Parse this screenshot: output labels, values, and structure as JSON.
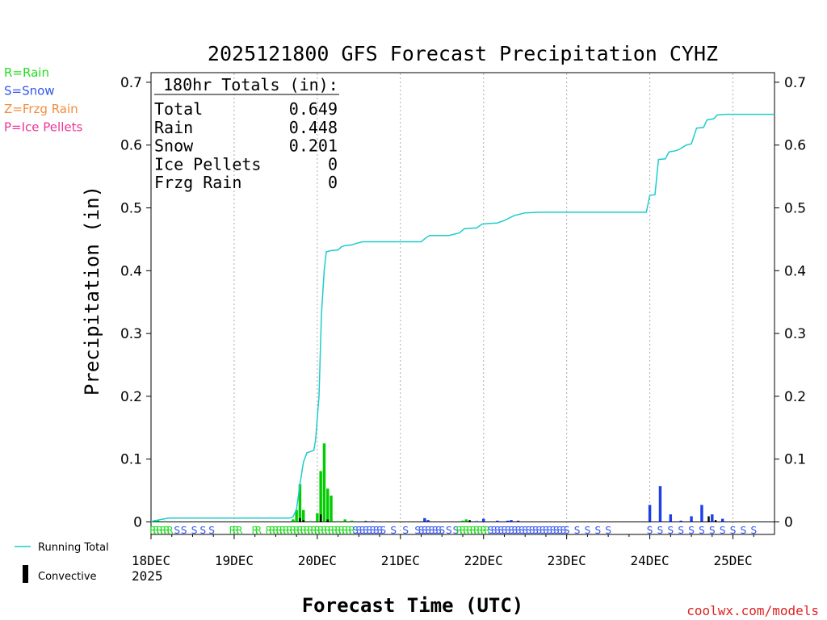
{
  "chart_data": {
    "type": "bar",
    "title": "2025121800 GFS Forecast Precipitation CYHZ",
    "xlabel": "Forecast Time (UTC)",
    "ylabel": "Precipitation (in)",
    "ylim": [
      0,
      0.72
    ],
    "xlim_hours": [
      0,
      180
    ],
    "y_ticks": [
      "0",
      "0.1",
      "0.2",
      "0.3",
      "0.4",
      "0.5",
      "0.6",
      "0.7"
    ],
    "x_ticks": [
      {
        "label": "18DEC",
        "hour": 0
      },
      {
        "label": "19DEC",
        "hour": 24
      },
      {
        "label": "20DEC",
        "hour": 48
      },
      {
        "label": "21DEC",
        "hour": 72
      },
      {
        "label": "22DEC",
        "hour": 96
      },
      {
        "label": "23DEC",
        "hour": 120
      },
      {
        "label": "24DEC",
        "hour": 144
      },
      {
        "label": "25DEC",
        "hour": 168
      }
    ],
    "year_label": "2025",
    "totals_box": {
      "header": "180hr Totals (in):",
      "rows": [
        {
          "label": "Total",
          "value": "0.649"
        },
        {
          "label": "Rain",
          "value": "0.448"
        },
        {
          "label": "Snow",
          "value": "0.201"
        },
        {
          "label": "Ice Pellets",
          "value": "0"
        },
        {
          "label": "Frzg Rain",
          "value": "0"
        }
      ]
    },
    "legend_types": [
      {
        "label": "R=Rain",
        "color": "#22dd22"
      },
      {
        "label": "S=Snow",
        "color": "#3355ee"
      },
      {
        "label": "Z=Frzg Rain",
        "color": "#f08c3c"
      },
      {
        "label": "P=Ice Pellets",
        "color": "#ee3399"
      }
    ],
    "legend_bottom": {
      "running_total": "Running Total",
      "convective": "Convective"
    },
    "colors": {
      "rain": "#00cc00",
      "snow": "#1e3ee6",
      "running_total": "#1ecccc",
      "convective": "#000000",
      "snow_letter": "#3355ee",
      "rain_letter": "#22dd22"
    },
    "running_total": [
      [
        0,
        0
      ],
      [
        1,
        0.002
      ],
      [
        2,
        0.003
      ],
      [
        3,
        0.004
      ],
      [
        4,
        0.005
      ],
      [
        5,
        0.006
      ],
      [
        8,
        0.006
      ],
      [
        20,
        0.006
      ],
      [
        40,
        0.006
      ],
      [
        41,
        0.008
      ],
      [
        42,
        0.02
      ],
      [
        43,
        0.06
      ],
      [
        44,
        0.095
      ],
      [
        45,
        0.11
      ],
      [
        46,
        0.112
      ],
      [
        47,
        0.114
      ],
      [
        47.5,
        0.13
      ],
      [
        48.5,
        0.2
      ],
      [
        49.2,
        0.33
      ],
      [
        50,
        0.4
      ],
      [
        50.6,
        0.43
      ],
      [
        52,
        0.432
      ],
      [
        54,
        0.433
      ],
      [
        55,
        0.438
      ],
      [
        56,
        0.44
      ],
      [
        58,
        0.441
      ],
      [
        59,
        0.443
      ],
      [
        61,
        0.446
      ],
      [
        72,
        0.446
      ],
      [
        78,
        0.446
      ],
      [
        79.5,
        0.453
      ],
      [
        80.5,
        0.456
      ],
      [
        86,
        0.456
      ],
      [
        89,
        0.46
      ],
      [
        90.5,
        0.467
      ],
      [
        94,
        0.468
      ],
      [
        95.5,
        0.474
      ],
      [
        97,
        0.475
      ],
      [
        100,
        0.476
      ],
      [
        102,
        0.48
      ],
      [
        105,
        0.488
      ],
      [
        108,
        0.492
      ],
      [
        112,
        0.493
      ],
      [
        120,
        0.493
      ],
      [
        135,
        0.493
      ],
      [
        143,
        0.493
      ],
      [
        144,
        0.52
      ],
      [
        145.5,
        0.521
      ],
      [
        146.5,
        0.577
      ],
      [
        148.5,
        0.578
      ],
      [
        149.5,
        0.589
      ],
      [
        151.5,
        0.591
      ],
      [
        152.5,
        0.593
      ],
      [
        154.5,
        0.6
      ],
      [
        156,
        0.602
      ],
      [
        157.5,
        0.627
      ],
      [
        159.5,
        0.628
      ],
      [
        160.5,
        0.64
      ],
      [
        162.5,
        0.642
      ],
      [
        163.5,
        0.648
      ],
      [
        166,
        0.649
      ],
      [
        180,
        0.649
      ]
    ],
    "bars": [
      {
        "hour": 1,
        "value": 0.001,
        "type": "rain"
      },
      {
        "hour": 2,
        "value": 0.002,
        "type": "rain"
      },
      {
        "hour": 4,
        "value": 0.001,
        "type": "rain"
      },
      {
        "hour": 41,
        "value": 0.004,
        "type": "rain"
      },
      {
        "hour": 42,
        "value": 0.019,
        "type": "rain"
      },
      {
        "hour": 43,
        "value": 0.06,
        "type": "rain"
      },
      {
        "hour": 44,
        "value": 0.019,
        "type": "rain"
      },
      {
        "hour": 46,
        "value": 0.001,
        "type": "rain"
      },
      {
        "hour": 48,
        "value": 0.014,
        "type": "rain"
      },
      {
        "hour": 49,
        "value": 0.081,
        "type": "rain"
      },
      {
        "hour": 50,
        "value": 0.125,
        "type": "rain"
      },
      {
        "hour": 51,
        "value": 0.053,
        "type": "rain"
      },
      {
        "hour": 52,
        "value": 0.042,
        "type": "rain"
      },
      {
        "hour": 54,
        "value": 0.001,
        "type": "rain"
      },
      {
        "hour": 56,
        "value": 0.004,
        "type": "rain"
      },
      {
        "hour": 58,
        "value": 0.002,
        "type": "rain"
      },
      {
        "hour": 62,
        "value": 0.001,
        "type": "snow"
      },
      {
        "hour": 64,
        "value": 0.001,
        "type": "snow"
      },
      {
        "hour": 79,
        "value": 0.006,
        "type": "snow"
      },
      {
        "hour": 80,
        "value": 0.003,
        "type": "snow"
      },
      {
        "hour": 90,
        "value": 0.002,
        "type": "rain"
      },
      {
        "hour": 91,
        "value": 0.004,
        "type": "rain"
      },
      {
        "hour": 94,
        "value": 0.001,
        "type": "snow"
      },
      {
        "hour": 96,
        "value": 0.005,
        "type": "snow"
      },
      {
        "hour": 100,
        "value": 0.002,
        "type": "snow"
      },
      {
        "hour": 103,
        "value": 0.002,
        "type": "snow"
      },
      {
        "hour": 104,
        "value": 0.003,
        "type": "snow"
      },
      {
        "hour": 106,
        "value": 0.002,
        "type": "snow"
      },
      {
        "hour": 144,
        "value": 0.027,
        "type": "snow"
      },
      {
        "hour": 147,
        "value": 0.057,
        "type": "snow"
      },
      {
        "hour": 150,
        "value": 0.012,
        "type": "snow"
      },
      {
        "hour": 153,
        "value": 0.002,
        "type": "snow"
      },
      {
        "hour": 156,
        "value": 0.009,
        "type": "snow"
      },
      {
        "hour": 159,
        "value": 0.027,
        "type": "snow"
      },
      {
        "hour": 162,
        "value": 0.012,
        "type": "snow"
      },
      {
        "hour": 165,
        "value": 0.005,
        "type": "snow"
      }
    ],
    "convective": [
      {
        "hour": 43,
        "value": 0.006
      },
      {
        "hour": 44,
        "value": 0.003
      },
      {
        "hour": 49,
        "value": 0.012
      },
      {
        "hour": 51,
        "value": 0.004
      },
      {
        "hour": 62,
        "value": 0.001
      },
      {
        "hour": 92,
        "value": 0.003
      },
      {
        "hour": 161,
        "value": 0.009
      },
      {
        "hour": 163,
        "value": 0.003
      }
    ],
    "ptype_row": [
      {
        "hour": 0.5,
        "letter": "R"
      },
      {
        "hour": 1.5,
        "letter": "R"
      },
      {
        "hour": 2.5,
        "letter": "R"
      },
      {
        "hour": 3.5,
        "letter": "R"
      },
      {
        "hour": 4.5,
        "letter": "R"
      },
      {
        "hour": 5.5,
        "letter": "R"
      },
      {
        "hour": 7.5,
        "letter": "S"
      },
      {
        "hour": 9.5,
        "letter": "S"
      },
      {
        "hour": 12.5,
        "letter": "S"
      },
      {
        "hour": 15,
        "letter": "S"
      },
      {
        "hour": 17.5,
        "letter": "S"
      },
      {
        "hour": 23.5,
        "letter": "R"
      },
      {
        "hour": 24.5,
        "letter": "R"
      },
      {
        "hour": 25.5,
        "letter": "R"
      },
      {
        "hour": 30,
        "letter": "R"
      },
      {
        "hour": 31,
        "letter": "R"
      },
      {
        "hour": 34,
        "letter": "R"
      },
      {
        "hour": 35,
        "letter": "R"
      },
      {
        "hour": 36,
        "letter": "R"
      },
      {
        "hour": 37,
        "letter": "R"
      },
      {
        "hour": 38,
        "letter": "R"
      },
      {
        "hour": 39,
        "letter": "R"
      },
      {
        "hour": 40,
        "letter": "R"
      },
      {
        "hour": 41,
        "letter": "R"
      },
      {
        "hour": 42,
        "letter": "R"
      },
      {
        "hour": 43,
        "letter": "R"
      },
      {
        "hour": 44,
        "letter": "R"
      },
      {
        "hour": 45,
        "letter": "R"
      },
      {
        "hour": 46,
        "letter": "R"
      },
      {
        "hour": 47,
        "letter": "R"
      },
      {
        "hour": 48,
        "letter": "R"
      },
      {
        "hour": 49,
        "letter": "R"
      },
      {
        "hour": 50,
        "letter": "R"
      },
      {
        "hour": 51,
        "letter": "R"
      },
      {
        "hour": 52,
        "letter": "R"
      },
      {
        "hour": 53,
        "letter": "R"
      },
      {
        "hour": 54,
        "letter": "R"
      },
      {
        "hour": 55,
        "letter": "R"
      },
      {
        "hour": 56,
        "letter": "R"
      },
      {
        "hour": 57,
        "letter": "R"
      },
      {
        "hour": 58,
        "letter": "R"
      },
      {
        "hour": 59,
        "letter": "S"
      },
      {
        "hour": 60,
        "letter": "S"
      },
      {
        "hour": 61,
        "letter": "S"
      },
      {
        "hour": 62,
        "letter": "S"
      },
      {
        "hour": 63,
        "letter": "S"
      },
      {
        "hour": 64,
        "letter": "S"
      },
      {
        "hour": 65,
        "letter": "S"
      },
      {
        "hour": 66,
        "letter": "S"
      },
      {
        "hour": 67,
        "letter": "S"
      },
      {
        "hour": 70,
        "letter": "S"
      },
      {
        "hour": 73.5,
        "letter": "S"
      },
      {
        "hour": 77,
        "letter": "S"
      },
      {
        "hour": 78,
        "letter": "S"
      },
      {
        "hour": 79,
        "letter": "S"
      },
      {
        "hour": 80,
        "letter": "S"
      },
      {
        "hour": 81,
        "letter": "S"
      },
      {
        "hour": 82,
        "letter": "S"
      },
      {
        "hour": 83,
        "letter": "S"
      },
      {
        "hour": 84,
        "letter": "S"
      },
      {
        "hour": 86,
        "letter": "S"
      },
      {
        "hour": 88,
        "letter": "S"
      },
      {
        "hour": 89,
        "letter": "R"
      },
      {
        "hour": 90,
        "letter": "R"
      },
      {
        "hour": 91,
        "letter": "R"
      },
      {
        "hour": 92,
        "letter": "R"
      },
      {
        "hour": 93,
        "letter": "R"
      },
      {
        "hour": 94,
        "letter": "R"
      },
      {
        "hour": 95,
        "letter": "R"
      },
      {
        "hour": 96,
        "letter": "R"
      },
      {
        "hour": 97,
        "letter": "R"
      },
      {
        "hour": 98,
        "letter": "S"
      },
      {
        "hour": 99,
        "letter": "S"
      },
      {
        "hour": 100,
        "letter": "S"
      },
      {
        "hour": 101,
        "letter": "S"
      },
      {
        "hour": 102,
        "letter": "S"
      },
      {
        "hour": 103,
        "letter": "S"
      },
      {
        "hour": 104,
        "letter": "S"
      },
      {
        "hour": 105,
        "letter": "S"
      },
      {
        "hour": 106,
        "letter": "S"
      },
      {
        "hour": 107,
        "letter": "S"
      },
      {
        "hour": 108,
        "letter": "S"
      },
      {
        "hour": 109,
        "letter": "S"
      },
      {
        "hour": 110,
        "letter": "S"
      },
      {
        "hour": 111,
        "letter": "S"
      },
      {
        "hour": 112,
        "letter": "S"
      },
      {
        "hour": 113,
        "letter": "S"
      },
      {
        "hour": 114,
        "letter": "S"
      },
      {
        "hour": 115,
        "letter": "S"
      },
      {
        "hour": 116,
        "letter": "S"
      },
      {
        "hour": 117,
        "letter": "S"
      },
      {
        "hour": 118,
        "letter": "S"
      },
      {
        "hour": 119,
        "letter": "S"
      },
      {
        "hour": 120,
        "letter": "S"
      },
      {
        "hour": 123,
        "letter": "S"
      },
      {
        "hour": 126,
        "letter": "S"
      },
      {
        "hour": 129,
        "letter": "S"
      },
      {
        "hour": 132,
        "letter": "S"
      },
      {
        "hour": 144,
        "letter": "S"
      },
      {
        "hour": 147,
        "letter": "S"
      },
      {
        "hour": 150,
        "letter": "S"
      },
      {
        "hour": 153,
        "letter": "S"
      },
      {
        "hour": 156,
        "letter": "S"
      },
      {
        "hour": 159,
        "letter": "S"
      },
      {
        "hour": 162,
        "letter": "S"
      },
      {
        "hour": 165,
        "letter": "S"
      },
      {
        "hour": 168,
        "letter": "S"
      },
      {
        "hour": 171,
        "letter": "S"
      },
      {
        "hour": 174,
        "letter": "S"
      }
    ],
    "credit": "coolwx.com/models"
  }
}
